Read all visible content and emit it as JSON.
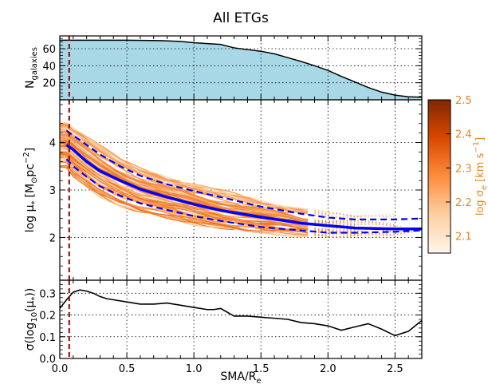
{
  "chart_data": {
    "title": "All ETGs",
    "x": {
      "label": "SMA/R",
      "label_sub": "e",
      "range": [
        0.0,
        2.7
      ],
      "ticks": [
        0.0,
        0.5,
        1.0,
        1.5,
        2.0,
        2.5
      ],
      "tick_labels": [
        "0.0",
        "0.5",
        "1.0",
        "1.5",
        "2.0",
        "2.5"
      ]
    },
    "vline": {
      "x": 0.07,
      "color": "#8b0000",
      "style": "dashed"
    },
    "panels": [
      {
        "type": "area",
        "ylabel": "N",
        "ylabel_sub": "galaxies",
        "ylim": [
          0,
          75
        ],
        "yticks": [
          20,
          40,
          60
        ],
        "ytick_labels": [
          "20",
          "40",
          "60"
        ],
        "fill_color": "#a8d8e6",
        "x": [
          0.0,
          0.1,
          0.5,
          0.75,
          0.9,
          1.0,
          1.2,
          1.3,
          1.5,
          1.6,
          1.7,
          1.8,
          1.9,
          2.0,
          2.1,
          2.2,
          2.3,
          2.4,
          2.5,
          2.6,
          2.7
        ],
        "y": [
          70,
          70,
          70,
          69.5,
          68.5,
          67,
          65,
          61,
          57,
          54,
          49.5,
          45,
          40,
          34.5,
          27.5,
          21,
          14.5,
          9,
          5.5,
          3.5,
          3
        ]
      },
      {
        "type": "line",
        "ylabel": "log μ",
        "ylabel_sub": "*",
        "ylabel_unit": "[M",
        "ylabel_unit_sub": "⊙",
        "ylabel_unit_tail": "pc",
        "ylabel_unit_sup": "−2",
        "ylabel_unit_close": "]",
        "ylim": [
          1.1,
          4.9
        ],
        "yticks": [
          2,
          3,
          4
        ],
        "ytick_labels": [
          "2",
          "3",
          "4"
        ],
        "series": [
          {
            "role": "median",
            "color": "#0000ff",
            "style": "solid",
            "x": [
              0.05,
              0.1,
              0.2,
              0.3,
              0.45,
              0.6,
              0.8,
              1.0,
              1.2,
              1.5,
              1.8,
              2.0,
              2.2,
              2.5,
              2.7
            ],
            "y": [
              3.95,
              3.85,
              3.6,
              3.4,
              3.2,
              3.02,
              2.85,
              2.7,
              2.57,
              2.43,
              2.3,
              2.25,
              2.2,
              2.18,
              2.18
            ]
          },
          {
            "role": "upper",
            "color": "#0000ff",
            "style": "dashed",
            "x": [
              0.05,
              0.1,
              0.2,
              0.3,
              0.45,
              0.6,
              0.8,
              1.0,
              1.2,
              1.5,
              1.8,
              2.0,
              2.2,
              2.5,
              2.7
            ],
            "y": [
              4.25,
              4.15,
              3.95,
              3.75,
              3.5,
              3.3,
              3.12,
              2.98,
              2.85,
              2.65,
              2.5,
              2.42,
              2.38,
              2.38,
              2.4
            ]
          },
          {
            "role": "lower",
            "color": "#0000ff",
            "style": "dashed",
            "x": [
              0.05,
              0.1,
              0.2,
              0.3,
              0.45,
              0.6,
              0.8,
              1.0,
              1.2,
              1.5,
              1.8,
              2.0,
              2.2,
              2.5,
              2.7
            ],
            "y": [
              3.65,
              3.5,
              3.28,
              3.08,
              2.88,
              2.72,
              2.58,
              2.45,
              2.35,
              2.22,
              2.15,
              2.1,
              2.1,
              2.12,
              2.15
            ]
          }
        ],
        "individual_profiles": {
          "count": 70,
          "colormap": "Oranges",
          "dotted_beyond_x": 1.9
        }
      },
      {
        "type": "line",
        "ylabel": "σ(log",
        "ylabel_sub": "10",
        "ylabel_tail": "(μ",
        "ylabel_tail_sub": "*",
        "ylabel_close": "))",
        "ylim": [
          0,
          0.36
        ],
        "yticks": [
          0.0,
          0.1,
          0.2,
          0.3
        ],
        "ytick_labels": [
          "0.0",
          "0.1",
          "0.2",
          "0.3"
        ],
        "series": [
          {
            "role": "scatter",
            "color": "#000000",
            "style": "solid",
            "x": [
              0.0,
              0.05,
              0.1,
              0.15,
              0.2,
              0.25,
              0.3,
              0.35,
              0.4,
              0.5,
              0.6,
              0.7,
              0.8,
              0.9,
              1.0,
              1.1,
              1.15,
              1.2,
              1.3,
              1.4,
              1.5,
              1.6,
              1.7,
              1.8,
              1.9,
              2.0,
              2.1,
              2.2,
              2.3,
              2.4,
              2.5,
              2.6,
              2.7
            ],
            "y": [
              0.23,
              0.27,
              0.305,
              0.315,
              0.31,
              0.3,
              0.285,
              0.275,
              0.27,
              0.26,
              0.25,
              0.25,
              0.255,
              0.245,
              0.235,
              0.225,
              0.225,
              0.23,
              0.195,
              0.195,
              0.19,
              0.185,
              0.18,
              0.165,
              0.16,
              0.15,
              0.13,
              0.145,
              0.16,
              0.135,
              0.105,
              0.125,
              0.175
            ]
          }
        ]
      }
    ],
    "colorbar": {
      "cmap": "Oranges",
      "ticks": [
        2.1,
        2.2,
        2.3,
        2.4,
        2.5
      ],
      "tick_labels": [
        "2.1",
        "2.2",
        "2.3",
        "2.4",
        "2.5"
      ],
      "range": [
        2.05,
        2.5
      ],
      "label": "log σ",
      "label_sub": "e",
      "label_unit": "[km s",
      "label_unit_sup": "−1",
      "label_close": "]",
      "label_color": "#e8861c"
    }
  }
}
